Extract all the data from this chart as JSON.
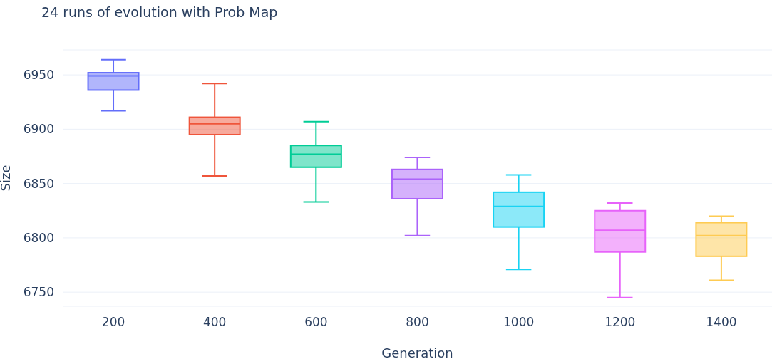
{
  "chart_data": {
    "type": "box",
    "title": "24 runs of evolution with Prob Map",
    "xlabel": "Generation",
    "ylabel": "Size",
    "categories": [
      "200",
      "400",
      "600",
      "800",
      "1000",
      "1200",
      "1400"
    ],
    "boxes": [
      {
        "low": 6917,
        "q1": 6936,
        "median": 6949,
        "q3": 6952,
        "high": 6964
      },
      {
        "low": 6857,
        "q1": 6895,
        "median": 6905,
        "q3": 6911,
        "high": 6942
      },
      {
        "low": 6833,
        "q1": 6865,
        "median": 6877,
        "q3": 6885,
        "high": 6907
      },
      {
        "low": 6802,
        "q1": 6836,
        "median": 6854,
        "q3": 6863,
        "high": 6874
      },
      {
        "low": 6771,
        "q1": 6810,
        "median": 6829,
        "q3": 6842,
        "high": 6858
      },
      {
        "low": 6745,
        "q1": 6787,
        "median": 6807,
        "q3": 6825,
        "high": 6832
      },
      {
        "low": 6761,
        "q1": 6783,
        "median": 6802,
        "q3": 6814,
        "high": 6820
      }
    ],
    "colors": [
      "#636efa",
      "#ef553b",
      "#00cc96",
      "#ab63fa",
      "#19d3f3",
      "#e763fa",
      "#fecb52"
    ],
    "ylim": [
      6737,
      6973
    ],
    "yticks": [
      6750,
      6800,
      6850,
      6900,
      6950
    ],
    "grid": "y"
  }
}
